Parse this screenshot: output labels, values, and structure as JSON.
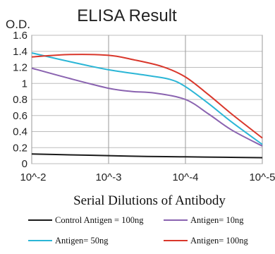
{
  "chart_data": {
    "type": "line",
    "title": "ELISA Result",
    "ylabel": "O.D.",
    "xlabel": "Serial Dilutions of Antibody",
    "x_ticks": [
      "10^-2",
      "10^-3",
      "10^-4",
      "10^-5"
    ],
    "x_log_exponents": [
      -2,
      -3,
      -4,
      -5
    ],
    "y_ticks": [
      "0",
      "0.2",
      "0.4",
      "0.6",
      "0.8",
      "1",
      "1.2",
      "1.4",
      "1.6"
    ],
    "ylim": [
      0,
      1.6
    ],
    "grid": true,
    "legend_position": "bottom",
    "series": [
      {
        "name": "Control Antigen = 100ng",
        "color": "#1a1a1a",
        "x": [
          -2,
          -2.5,
          -3,
          -3.5,
          -4,
          -4.5,
          -5
        ],
        "values": [
          0.12,
          0.11,
          0.1,
          0.09,
          0.085,
          0.08,
          0.075
        ]
      },
      {
        "name": "Antigen= 10ng",
        "color": "#8a63b0",
        "x": [
          -2,
          -2.5,
          -3,
          -3.3,
          -3.6,
          -4,
          -4.3,
          -4.6,
          -5
        ],
        "values": [
          1.19,
          1.06,
          0.94,
          0.9,
          0.88,
          0.8,
          0.62,
          0.42,
          0.22
        ]
      },
      {
        "name": "Antigen= 50ng",
        "color": "#2bb6d6",
        "x": [
          -2,
          -2.5,
          -3,
          -3.5,
          -3.8,
          -4,
          -4.3,
          -4.6,
          -5
        ],
        "values": [
          1.38,
          1.27,
          1.17,
          1.1,
          1.05,
          0.96,
          0.75,
          0.52,
          0.24
        ]
      },
      {
        "name": "Antigen= 100ng",
        "color": "#d9372b",
        "x": [
          -2,
          -2.5,
          -3,
          -3.3,
          -3.7,
          -4,
          -4.3,
          -4.6,
          -5
        ],
        "values": [
          1.33,
          1.36,
          1.35,
          1.3,
          1.21,
          1.08,
          0.86,
          0.62,
          0.32
        ]
      }
    ]
  }
}
